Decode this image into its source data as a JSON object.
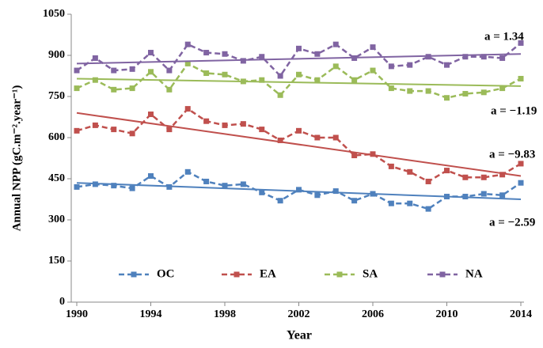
{
  "chart_data": {
    "type": "line",
    "x_label": "Year",
    "y_label": "Annual NPP (gC.m⁻².year⁻¹)",
    "x": [
      1990,
      1991,
      1992,
      1993,
      1994,
      1995,
      1996,
      1997,
      1998,
      1999,
      2000,
      2001,
      2002,
      2003,
      2004,
      2005,
      2006,
      2007,
      2008,
      2009,
      2010,
      2011,
      2012,
      2013,
      2014
    ],
    "xlim": [
      1990,
      2014
    ],
    "xticks": [
      1990,
      1994,
      1998,
      2002,
      2006,
      2010,
      2014
    ],
    "ylim": [
      0,
      1050
    ],
    "yticks": [
      0,
      150,
      300,
      450,
      600,
      750,
      900,
      1050
    ],
    "legend": "bottom",
    "series": [
      {
        "name": "OC",
        "color": "#4f81bd",
        "values": [
          420,
          430,
          425,
          415,
          460,
          420,
          475,
          440,
          425,
          430,
          400,
          370,
          410,
          390,
          405,
          370,
          395,
          360,
          360,
          340,
          385,
          385,
          395,
          390,
          435
        ],
        "trend": [
          435,
          375
        ],
        "annotation": "a = −2.59"
      },
      {
        "name": "EA",
        "color": "#c0504d",
        "values": [
          625,
          645,
          630,
          615,
          685,
          630,
          705,
          660,
          645,
          650,
          630,
          590,
          625,
          600,
          600,
          535,
          540,
          495,
          475,
          440,
          480,
          455,
          455,
          465,
          505
        ],
        "trend": [
          690,
          460
        ],
        "annotation": "a = −9.83"
      },
      {
        "name": "SA",
        "color": "#9bbb59",
        "values": [
          780,
          810,
          775,
          780,
          840,
          775,
          870,
          835,
          830,
          805,
          810,
          755,
          830,
          810,
          860,
          810,
          845,
          780,
          770,
          770,
          745,
          760,
          765,
          780,
          815
        ],
        "trend": [
          815,
          788
        ],
        "annotation": "a = −1.19"
      },
      {
        "name": "NA",
        "color": "#8064a2",
        "values": [
          845,
          890,
          845,
          850,
          910,
          845,
          940,
          910,
          905,
          880,
          895,
          825,
          925,
          905,
          940,
          890,
          930,
          860,
          865,
          895,
          865,
          895,
          895,
          890,
          945
        ],
        "trend": [
          870,
          905
        ],
        "annotation": "a = 1.34"
      }
    ]
  }
}
